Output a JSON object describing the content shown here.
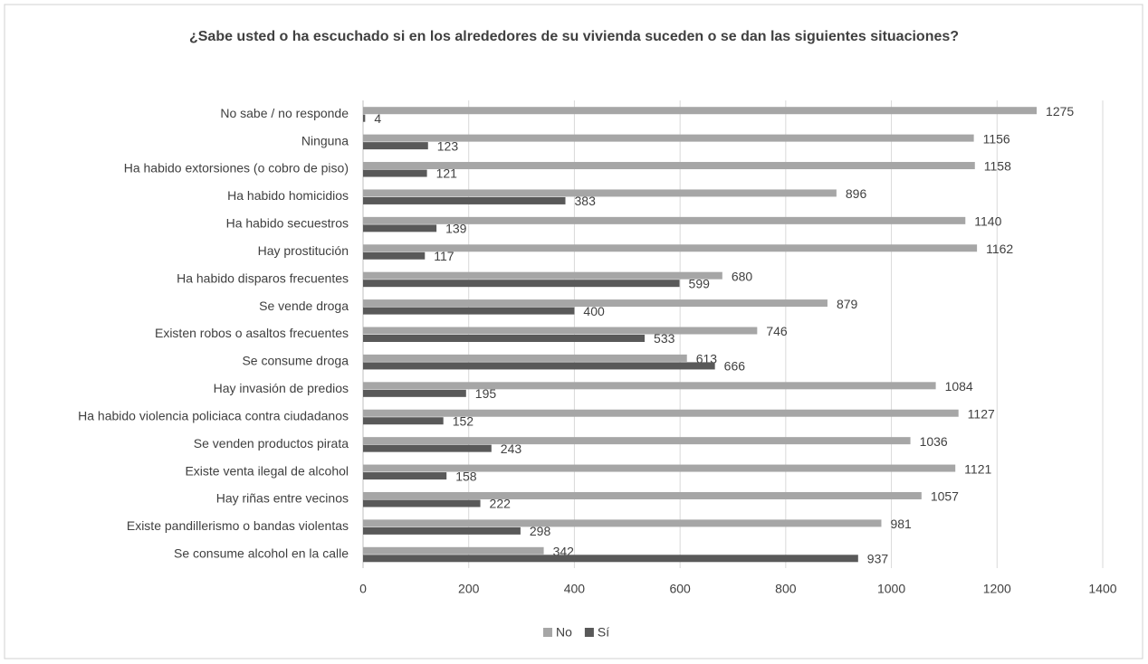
{
  "chart_data": {
    "type": "barh",
    "title": "¿Sabe usted o ha escuchado si en los alrededores de su vivienda suceden o se dan las siguientes situaciones?",
    "categories": [
      "No sabe / no responde",
      "Ninguna",
      "Ha habido extorsiones (o cobro de piso)",
      "Ha habido homicidios",
      "Ha habido secuestros",
      "Hay prostitución",
      "Ha habido disparos frecuentes",
      "Se vende droga",
      "Existen robos o asaltos frecuentes",
      "Se consume droga",
      "Hay invasión de predios",
      "Ha habido violencia policiaca contra ciudadanos",
      "Se venden productos pirata",
      "Existe venta ilegal de alcohol",
      "Hay riñas entre vecinos",
      "Existe pandillerismo o bandas violentas",
      "Se consume alcohol en la calle"
    ],
    "series": [
      {
        "name": "No",
        "color": "#a6a6a6",
        "values": [
          1275,
          1156,
          1158,
          896,
          1140,
          1162,
          680,
          879,
          746,
          613,
          1084,
          1127,
          1036,
          1121,
          1057,
          981,
          342
        ]
      },
      {
        "name": "Sí",
        "color": "#595959",
        "values": [
          4,
          123,
          121,
          383,
          139,
          117,
          599,
          400,
          533,
          666,
          195,
          152,
          243,
          158,
          222,
          298,
          937
        ]
      }
    ],
    "xlim": [
      0,
      1400
    ],
    "xticks": [
      0,
      200,
      400,
      600,
      800,
      1000,
      1200,
      1400
    ],
    "grid": true,
    "legend": "bottom"
  }
}
